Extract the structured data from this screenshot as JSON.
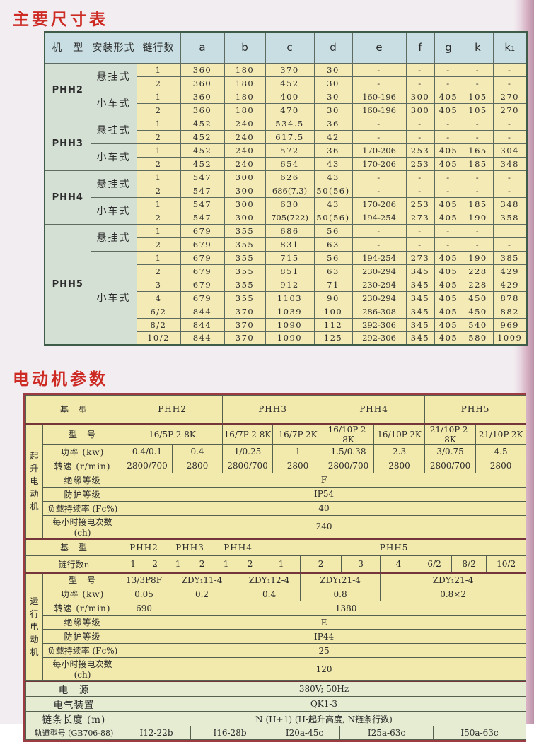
{
  "titles": {
    "dimensions": "主要尺寸表",
    "motor": "电动机参数"
  },
  "dim_table": {
    "headers": [
      "机　型",
      "安装形式",
      "链行数",
      "a",
      "b",
      "c",
      "d",
      "e",
      "f",
      "g",
      "k",
      "k₁"
    ],
    "groups": [
      {
        "model": "PHH2",
        "mounts": [
          {
            "mount": "悬挂式",
            "rows": [
              [
                "1",
                "360",
                "180",
                "370",
                "30",
                "-",
                "-",
                "-",
                "-",
                "-"
              ],
              [
                "2",
                "360",
                "180",
                "452",
                "30",
                "-",
                "-",
                "-",
                "-",
                "-"
              ]
            ]
          },
          {
            "mount": "小车式",
            "rows": [
              [
                "1",
                "360",
                "180",
                "400",
                "30",
                "160-196",
                "300",
                "405",
                "105",
                "270"
              ],
              [
                "2",
                "360",
                "180",
                "470",
                "30",
                "160-196",
                "300",
                "405",
                "105",
                "270"
              ]
            ]
          }
        ]
      },
      {
        "model": "PHH3",
        "mounts": [
          {
            "mount": "悬挂式",
            "rows": [
              [
                "1",
                "452",
                "240",
                "534.5",
                "36",
                "-",
                "-",
                "-",
                "-",
                "-"
              ],
              [
                "2",
                "452",
                "240",
                "617.5",
                "42",
                "-",
                "-",
                "-",
                "-",
                "-"
              ]
            ]
          },
          {
            "mount": "小车式",
            "rows": [
              [
                "1",
                "452",
                "240",
                "572",
                "36",
                "170-206",
                "253",
                "405",
                "165",
                "304"
              ],
              [
                "2",
                "452",
                "240",
                "654",
                "43",
                "170-206",
                "253",
                "405",
                "185",
                "348"
              ]
            ]
          }
        ]
      },
      {
        "model": "PHH4",
        "mounts": [
          {
            "mount": "悬挂式",
            "rows": [
              [
                "1",
                "547",
                "300",
                "626",
                "43",
                "-",
                "-",
                "-",
                "-",
                "-"
              ],
              [
                "2",
                "547",
                "300",
                "686(7.3)",
                "50(56)",
                "-",
                "-",
                "-",
                "-",
                "-"
              ]
            ]
          },
          {
            "mount": "小车式",
            "rows": [
              [
                "1",
                "547",
                "300",
                "630",
                "43",
                "170-206",
                "253",
                "405",
                "185",
                "348"
              ],
              [
                "2",
                "547",
                "300",
                "705(722)",
                "50(56)",
                "194-254",
                "273",
                "405",
                "190",
                "358"
              ]
            ]
          }
        ]
      },
      {
        "model": "PHH5",
        "mounts": [
          {
            "mount": "悬挂式",
            "rows": [
              [
                "1",
                "679",
                "355",
                "686",
                "56",
                "-",
                "-",
                "-",
                "-",
                ""
              ],
              [
                "2",
                "679",
                "355",
                "831",
                "63",
                "-",
                "-",
                "-",
                "-",
                "-"
              ]
            ]
          },
          {
            "mount": "小车式",
            "rows": [
              [
                "1",
                "679",
                "355",
                "715",
                "56",
                "194-254",
                "273",
                "405",
                "190",
                "385"
              ],
              [
                "2",
                "679",
                "355",
                "851",
                "63",
                "230-294",
                "345",
                "405",
                "228",
                "429"
              ],
              [
                "3",
                "679",
                "355",
                "912",
                "71",
                "230-294",
                "345",
                "405",
                "228",
                "429"
              ],
              [
                "4",
                "679",
                "355",
                "1103",
                "90",
                "230-294",
                "345",
                "405",
                "450",
                "878"
              ],
              [
                "6/2",
                "844",
                "370",
                "1039",
                "100",
                "286-308",
                "345",
                "405",
                "450",
                "882"
              ],
              [
                "8/2",
                "844",
                "370",
                "1090",
                "112",
                "292-306",
                "345",
                "405",
                "540",
                "969"
              ],
              [
                "10/2",
                "844",
                "370",
                "1090",
                "125",
                "292-306",
                "345",
                "405",
                "580",
                "1009"
              ]
            ]
          }
        ]
      }
    ]
  },
  "motor_table": {
    "hoist": {
      "group_label": "起升电动机",
      "base_label": "基　型",
      "base_models": [
        {
          "t": "PHH2",
          "span": 2
        },
        {
          "t": "PHH3",
          "span": 2
        },
        {
          "t": "PHH4",
          "span": 2
        },
        {
          "t": "PHH5",
          "span": 2
        }
      ],
      "rows": [
        {
          "label": "型　号",
          "cells": [
            {
              "t": "16/5P-2-8K",
              "span": 2
            },
            {
              "t": "16/7P-2-8K",
              "span": 1
            },
            {
              "t": "16/7P-2K",
              "span": 1
            },
            {
              "t": "16/10P-2-8K",
              "span": 1
            },
            {
              "t": "16/10P-2K",
              "span": 1
            },
            {
              "t": "21/10P-2-8K",
              "span": 1
            },
            {
              "t": "21/10P-2K",
              "span": 1
            }
          ]
        },
        {
          "label": "功率 (kw)",
          "cells": [
            {
              "t": "0.4/0.1",
              "span": 1
            },
            {
              "t": "0.4",
              "span": 1
            },
            {
              "t": "1/0.25",
              "span": 1
            },
            {
              "t": "1",
              "span": 1
            },
            {
              "t": "1.5/0.38",
              "span": 1
            },
            {
              "t": "2.3",
              "span": 1
            },
            {
              "t": "3/0.75",
              "span": 1
            },
            {
              "t": "4.5",
              "span": 1
            }
          ]
        },
        {
          "label": "转速 (r/min)",
          "cells": [
            {
              "t": "2800/700",
              "span": 1
            },
            {
              "t": "2800",
              "span": 1
            },
            {
              "t": "2800/700",
              "span": 1
            },
            {
              "t": "2800",
              "span": 1
            },
            {
              "t": "2800/700",
              "span": 1
            },
            {
              "t": "2800",
              "span": 1
            },
            {
              "t": "2800/700",
              "span": 1
            },
            {
              "t": "2800",
              "span": 1
            }
          ]
        },
        {
          "label": "绝缘等级",
          "cells": [
            {
              "t": "F",
              "span": 8
            }
          ]
        },
        {
          "label": "防护等级",
          "cells": [
            {
              "t": "IP54",
              "span": 8
            }
          ]
        },
        {
          "label": "负载持续率 (Fc%)",
          "small": true,
          "cells": [
            {
              "t": "40",
              "span": 8
            }
          ]
        },
        {
          "label": "每小时接电次数 (ch)",
          "small": true,
          "cells": [
            {
              "t": "240",
              "span": 8
            }
          ]
        }
      ]
    },
    "travel": {
      "group_label": "运行电动机",
      "base_label": "基　型",
      "base_models": [
        {
          "t": "PHH2",
          "span": 2
        },
        {
          "t": "PHH3",
          "span": 2
        },
        {
          "t": "PHH4",
          "span": 2
        },
        {
          "t": "PHH5",
          "span": 7
        }
      ],
      "chain_label": "链行数n",
      "chain_cols": [
        "1",
        "2",
        "1",
        "2",
        "1",
        "2",
        "1",
        "2",
        "3",
        "4",
        "6/2",
        "8/2",
        "10/2"
      ],
      "rows": [
        {
          "label": "型　号",
          "cells": [
            {
              "t": "13/3P8F",
              "span": 2
            },
            {
              "t": "ZDY₁11-4",
              "span": 3
            },
            {
              "t": "ZDY₁12-4",
              "span": 2
            },
            {
              "t": "ZDY₁21-4",
              "span": 2
            },
            {
              "t": "ZDY₁21-4",
              "span": 4
            }
          ]
        },
        {
          "label": "功率 (kw)",
          "cells": [
            {
              "t": "0.05",
              "span": 2
            },
            {
              "t": "0.2",
              "span": 3
            },
            {
              "t": "0.4",
              "span": 2
            },
            {
              "t": "0.8",
              "span": 2
            },
            {
              "t": "0.8×2",
              "span": 4
            }
          ]
        },
        {
          "label": "转速 (r/min)",
          "cells": [
            {
              "t": "690",
              "span": 2
            },
            {
              "t": "1380",
              "span": 11
            }
          ]
        },
        {
          "label": "绝缘等级",
          "cells": [
            {
              "t": "E",
              "span": 13
            }
          ]
        },
        {
          "label": "防护等级",
          "cells": [
            {
              "t": "IP44",
              "span": 13
            }
          ]
        },
        {
          "label": "负载持续率 (Fc%)",
          "small": true,
          "cells": [
            {
              "t": "25",
              "span": 13
            }
          ]
        },
        {
          "label": "每小时接电次数 (ch)",
          "small": true,
          "cells": [
            {
              "t": "120",
              "span": 13
            }
          ]
        }
      ]
    },
    "footer_rows": [
      {
        "label": "电　源",
        "cells": [
          {
            "t": "380V; 50Hz",
            "span": 5
          }
        ]
      },
      {
        "label": "电气装置",
        "cells": [
          {
            "t": "QK1-3",
            "span": 5
          }
        ]
      },
      {
        "label": "链条长度 (m)",
        "cells": [
          {
            "t": "N (H+1)  (H-起升高度, N链条行数)",
            "span": 5
          }
        ]
      },
      {
        "label": "轨道型号 (GB706-88)",
        "small": true,
        "cells": [
          {
            "t": "I12-22b",
            "span": 1
          },
          {
            "t": "I16-28b",
            "span": 1
          },
          {
            "t": "I20a-45c",
            "span": 1
          },
          {
            "t": "I25a-63c",
            "span": 1
          },
          {
            "t": "I50a-63c",
            "span": 1
          }
        ]
      }
    ]
  },
  "colors": {
    "title_red": "#cd2a24",
    "dim_header_bg": "#c8dee2",
    "dim_label_bg": "#d5e0d5",
    "dim_data_bg": "#f3eab5",
    "motor_header_bg": "#b9d8e1",
    "motor_body_bg": "#f2e9ad",
    "motor_footer_bg": "#e6ecd2",
    "motor_border": "#9c3b42",
    "dim_border": "#3f5c49"
  }
}
